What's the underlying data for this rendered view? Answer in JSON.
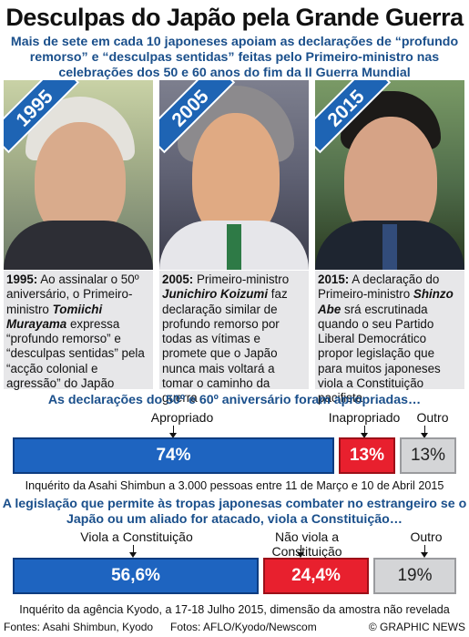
{
  "title": "Desculpas do Japão pela Grande Guerra",
  "subtitle": "Mais de sete em cada 10 japoneses apoiam as declarações de “profundo remorso” e “desculpas sentidas” feitas pelo Primeiro-ministro nas celebrações dos 50 e 60 anos do fim da II Guerra Mundial",
  "panels": [
    {
      "year": "1995",
      "caption_year": "1995:",
      "caption_pre": " Ao assinalar o 50º aniversário, o Primeiro-ministro ",
      "name": "Tomiichi Murayama",
      "caption_post": " expressa “profundo remorso” e “desculpas sentidas” pela “acção colonial e agressão” do Japão"
    },
    {
      "year": "2005",
      "caption_year": "2005:",
      "caption_pre": " Primeiro-ministro ",
      "name": "Junichiro Koizumi",
      "caption_post": " faz declaração similar de profundo remorso por todas as vítimas e promete que o Japão nunca mais voltará a tomar o caminho da guerra"
    },
    {
      "year": "2015",
      "caption_year": "2015:",
      "caption_pre": " A declaração do Primeiro-ministro ",
      "name": "Shinzo Abe",
      "caption_post": " srá escrutinada quando o seu Partido Liberal Democrático propor legislação que para muitos japoneses viola a Constituição pacifista"
    }
  ],
  "poll1": {
    "question": "As declarações do 50º e 60º aniversário foram apropriadas…",
    "labels": [
      "Apropriado",
      "Inapropriado",
      "Outro"
    ],
    "values": [
      74,
      13,
      13
    ],
    "value_labels": [
      "74%",
      "13%",
      "13%"
    ],
    "source": "Inquérito da Asahi Shimbun a 3.000 pessoas entre 11 de Março e 10 de Abril 2015"
  },
  "poll2": {
    "question": "A legislação que permite às tropas japonesas combater no estrangeiro se o Japão ou um aliado for atacado, viola a Constituição…",
    "labels": [
      "Viola a Constituição",
      "Não viola a Constituição",
      "Outro"
    ],
    "values": [
      56.6,
      24.4,
      19
    ],
    "value_labels": [
      "56,6%",
      "24,4%",
      "19%"
    ],
    "source": "Inquérito da agência Kyodo, a 17-18 Julho 2015, dimensão da amostra não revelada"
  },
  "footer": {
    "sources": "Fontes: Asahi Shimbun, Kyodo",
    "photos": "Fotos: AFLO/Kyodo/Newscom",
    "credit": "© GRAPHIC NEWS"
  },
  "colors": {
    "accent_blue": "#1e64c0",
    "accent_red": "#e8202e",
    "grey": "#d4d5d7",
    "heading_blue": "#1a4f8b"
  }
}
